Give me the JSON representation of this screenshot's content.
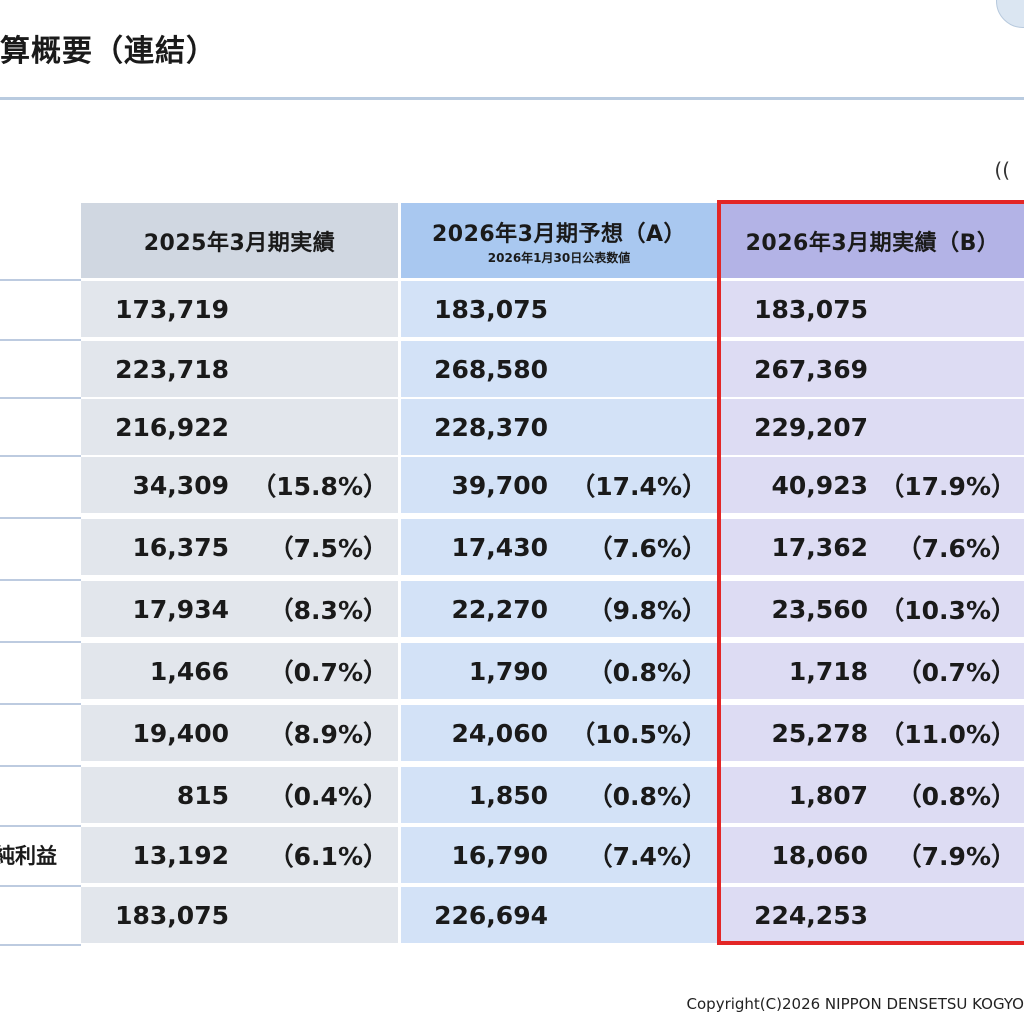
{
  "title": "算概要（連結）",
  "unit_note": "((",
  "columns": [
    {
      "title": "2025年3月期実績",
      "subtitle": ""
    },
    {
      "title": "2026年3月期予想（A）",
      "subtitle": "2026年1月30日公表数値"
    },
    {
      "title": "2026年3月期実績（B）",
      "subtitle": ""
    }
  ],
  "rows": [
    {
      "label": "",
      "values": [
        "173,719",
        "",
        "183,075",
        "",
        "183,075",
        ""
      ]
    },
    {
      "label": "",
      "values": [
        "223,718",
        "",
        "268,580",
        "",
        "267,369",
        ""
      ]
    },
    {
      "label": "",
      "values": [
        "216,922",
        "",
        "228,370",
        "",
        "229,207",
        ""
      ]
    },
    {
      "label": "",
      "values": [
        "34,309",
        "（15.8%）",
        "39,700",
        "（17.4%）",
        "40,923",
        "（17.9%）"
      ]
    },
    {
      "label": "",
      "values": [
        "16,375",
        "（7.5%）",
        "17,430",
        "（7.6%）",
        "17,362",
        "（7.6%）"
      ]
    },
    {
      "label": "",
      "values": [
        "17,934",
        "（8.3%）",
        "22,270",
        "（9.8%）",
        "23,560",
        "（10.3%）"
      ]
    },
    {
      "label": "",
      "values": [
        "1,466",
        "（0.7%）",
        "1,790",
        "（0.8%）",
        "1,718",
        "（0.7%）"
      ]
    },
    {
      "label": "",
      "values": [
        "19,400",
        "（8.9%）",
        "24,060",
        "（10.5%）",
        "25,278",
        "（11.0%）"
      ]
    },
    {
      "label": "",
      "values": [
        "815",
        "（0.4%）",
        "1,850",
        "（0.8%）",
        "1,807",
        "（0.8%）"
      ]
    },
    {
      "label": "純利益",
      "values": [
        "13,192",
        "（6.1%）",
        "16,790",
        "（7.4%）",
        "18,060",
        "（7.9%）"
      ]
    },
    {
      "label": "",
      "values": [
        "183,075",
        "",
        "226,694",
        "",
        "224,253",
        ""
      ]
    }
  ],
  "footer": "Copyright(C)2026 NIPPON DENSETSU KOGYO",
  "colors": {
    "highlight_border": "#e32626",
    "col1_fill": "#e2e6ec",
    "col2_fill": "#d3e2f7",
    "col3_fill": "#dddcf3"
  }
}
